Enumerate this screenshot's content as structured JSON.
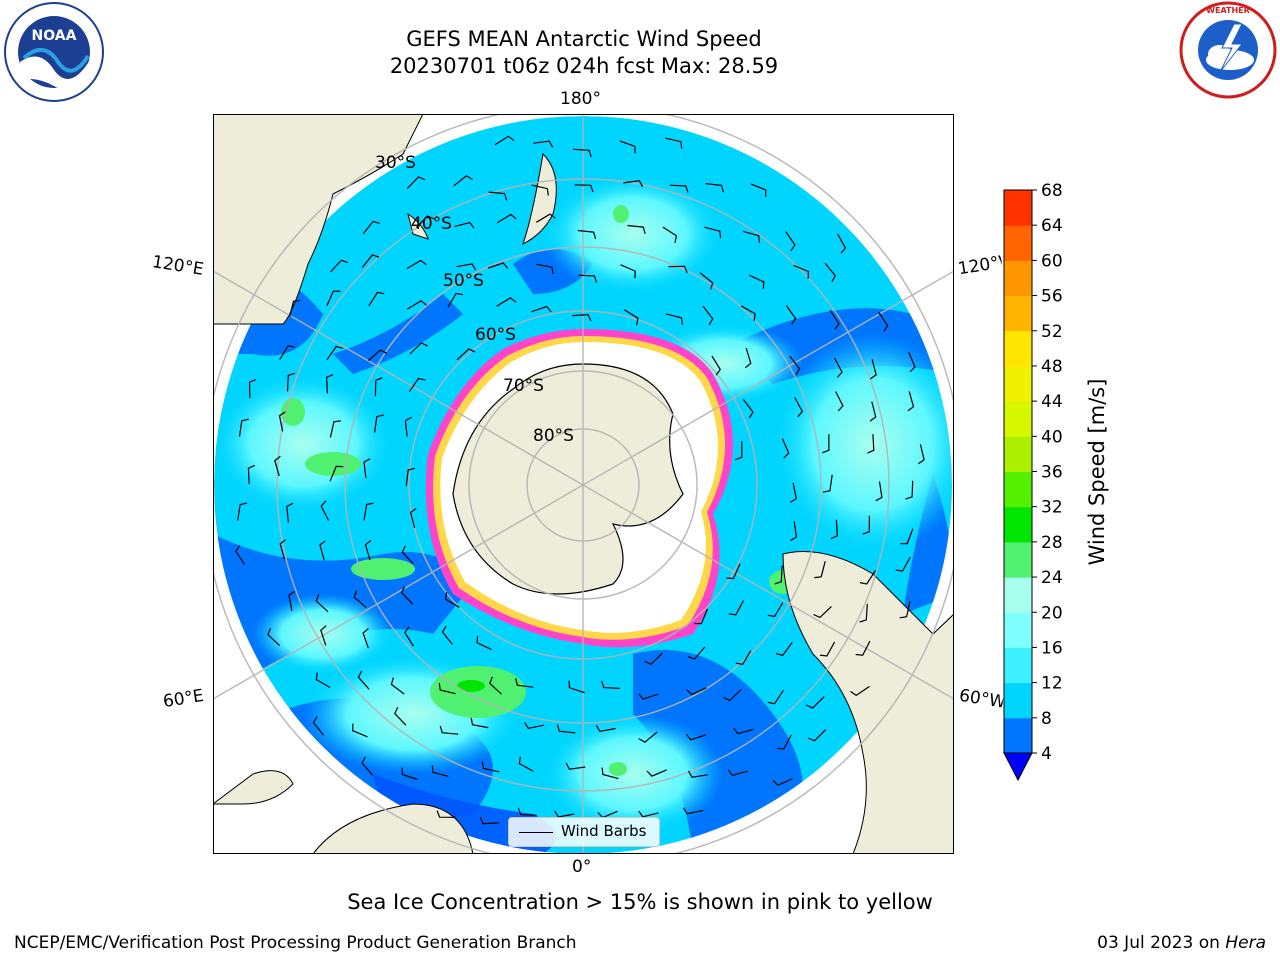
{
  "title": {
    "line1": "GEFS MEAN Antarctic Wind Speed",
    "line2": "20230701 t06z 024h fcst   Max: 28.59"
  },
  "logos": {
    "left": {
      "icon": "noaa-logo",
      "text": "NOAA"
    },
    "right": {
      "icon": "nws-logo",
      "text": "NATIONAL WEATHER SERVICE"
    }
  },
  "map": {
    "projection": "south-polar-stereographic",
    "longitude_labels": {
      "top": "180°",
      "bottom": "0°",
      "left_upper": "120°E",
      "left_lower": "60°E",
      "right_upper": "120°W",
      "right_lower": "60°W"
    },
    "latitude_labels": [
      "30°S",
      "40°S",
      "50°S",
      "60°S",
      "70°S",
      "80°S"
    ],
    "legend": {
      "label": "Wind Barbs"
    },
    "colors": {
      "ocean_low": "#0055ff",
      "ocean_mid": "#00d5ff",
      "ocean_high": "#90ffff",
      "land": "#eeedd9",
      "sea_ice": "#ff44cc",
      "grid": "#b4b4b4"
    }
  },
  "colorbar": {
    "label": "Wind Speed [m/s]",
    "ticks": [
      "4",
      "8",
      "12",
      "16",
      "20",
      "24",
      "28",
      "32",
      "36",
      "40",
      "44",
      "48",
      "52",
      "56",
      "60",
      "64",
      "68"
    ],
    "colors": [
      "#0076ff",
      "#00d5ff",
      "#3cf0ff",
      "#80ffff",
      "#a8ffee",
      "#50f070",
      "#00e600",
      "#55f000",
      "#aaf000",
      "#d6f700",
      "#f0f000",
      "#ffe600",
      "#ffb400",
      "#ff9600",
      "#ff6400",
      "#ff3200"
    ],
    "under_color": "#0000ff",
    "over_color": "#ff0000"
  },
  "note": "Sea Ice Concentration > 15% is shown in pink to yellow",
  "footer": {
    "left": "NCEP/EMC/Verification Post Processing Product Generation Branch",
    "right_date": "03 Jul 2023 on ",
    "right_host": "Hera"
  }
}
